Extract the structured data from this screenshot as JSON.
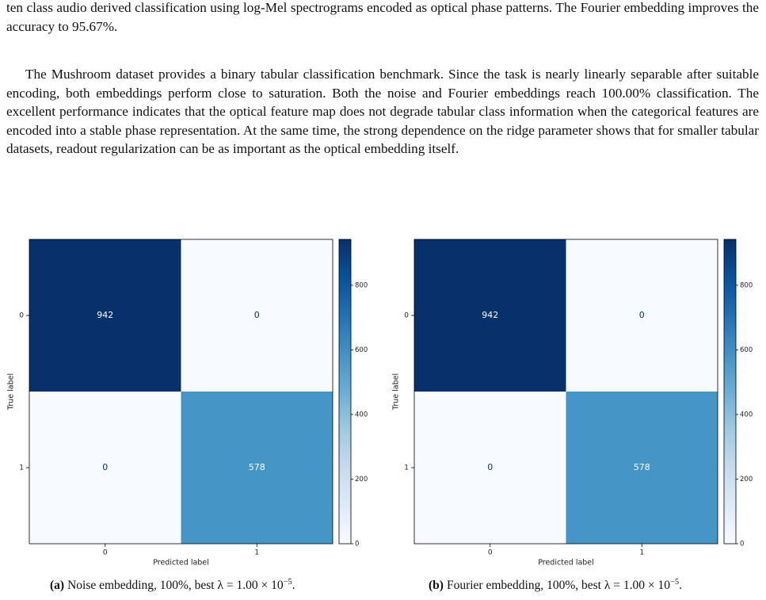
{
  "paragraphs": [
    "ten class audio derived classification using log-Mel spectrograms encoded as optical phase patterns. The Fourier embedding improves the accuracy to 95.67%.",
    "The Mushroom dataset provides a binary tabular classification benchmark. Since the task is nearly linearly separable after suitable encoding, both embeddings perform close to saturation. Both the noise and Fourier embeddings reach 100.00% classification. The excellent performance indicates that the optical feature map does not degrade tabular class information when the categorical features are encoded into a stable phase representation. At the same time, the strong dependence on the ridge parameter shows that for smaller tabular datasets, readout regularization can be as important as the optical embedding itself."
  ],
  "chart_data": [
    {
      "type": "heatmap",
      "x_categories": [
        "0",
        "1"
      ],
      "y_categories": [
        "0",
        "1"
      ],
      "values": [
        [
          942,
          0
        ],
        [
          0,
          578
        ]
      ],
      "xlabel": "Predicted label",
      "ylabel": "True label",
      "colormap": "Blues",
      "clim": [
        0,
        942
      ],
      "cticks": [
        0,
        200,
        400,
        600,
        800
      ],
      "caption_label": "(a)",
      "caption_text": "Noise embedding, 100%, best λ = 1.00 × 10",
      "caption_exp": "−5",
      "caption_end": "."
    },
    {
      "type": "heatmap",
      "x_categories": [
        "0",
        "1"
      ],
      "y_categories": [
        "0",
        "1"
      ],
      "values": [
        [
          942,
          0
        ],
        [
          0,
          578
        ]
      ],
      "xlabel": "Predicted label",
      "ylabel": "True label",
      "colormap": "Blues",
      "clim": [
        0,
        942
      ],
      "cticks": [
        0,
        200,
        400,
        600,
        800
      ],
      "caption_label": "(b)",
      "caption_text": "Fourier embedding, 100%, best λ = 1.00 × 10",
      "caption_exp": "−5",
      "caption_end": "."
    }
  ]
}
